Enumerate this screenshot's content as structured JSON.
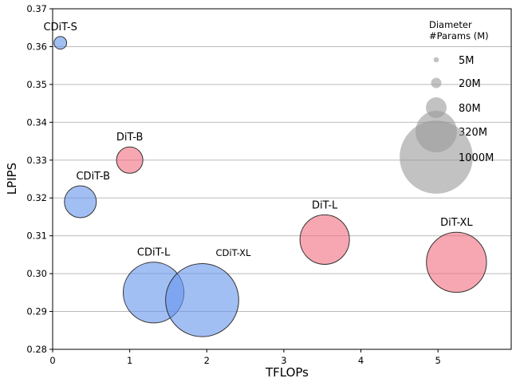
{
  "chart_data": {
    "type": "scatter",
    "title": "",
    "xlabel": "TFLOPs",
    "ylabel": "LPIPS",
    "xlim": [
      0,
      5.95
    ],
    "ylim": [
      0.28,
      0.37
    ],
    "xticks": [
      "0",
      "1",
      "2",
      "3",
      "4",
      "5"
    ],
    "yticks": [
      "0.28",
      "0.29",
      "0.30",
      "0.31",
      "0.32",
      "0.33",
      "0.34",
      "0.35",
      "0.36",
      "0.37"
    ],
    "grid": "horizontal",
    "colors": {
      "CDiT": "#6495ed",
      "DiT": "#f26d7d",
      "edge": "#333333",
      "legend": "#999999"
    },
    "points": [
      {
        "label": "CDiT-S",
        "family": "CDiT",
        "tflops": 0.1,
        "lpips": 0.361,
        "params_m": 30
      },
      {
        "label": "CDiT-B",
        "family": "CDiT",
        "tflops": 0.36,
        "lpips": 0.319,
        "params_m": 190
      },
      {
        "label": "DiT-B",
        "family": "DiT",
        "tflops": 1.0,
        "lpips": 0.33,
        "params_m": 130
      },
      {
        "label": "CDiT-L",
        "family": "CDiT",
        "tflops": 1.31,
        "lpips": 0.295,
        "params_m": 690
      },
      {
        "label": "CDiT-XL",
        "family": "CDiT",
        "tflops": 1.94,
        "lpips": 0.293,
        "params_m": 1000
      },
      {
        "label": "DiT-L",
        "family": "DiT",
        "tflops": 3.53,
        "lpips": 0.309,
        "params_m": 458
      },
      {
        "label": "DiT-XL",
        "family": "DiT",
        "tflops": 5.24,
        "lpips": 0.303,
        "params_m": 675
      }
    ],
    "legend": {
      "title_line1": "Diameter",
      "title_line2": "#Params (M)",
      "placement": "top-right",
      "entries": [
        {
          "label": "5M",
          "params_m": 5
        },
        {
          "label": "20M",
          "params_m": 20
        },
        {
          "label": "80M",
          "params_m": 80
        },
        {
          "label": "320M",
          "params_m": 320
        },
        {
          "label": "1000M",
          "params_m": 1000
        }
      ]
    }
  }
}
